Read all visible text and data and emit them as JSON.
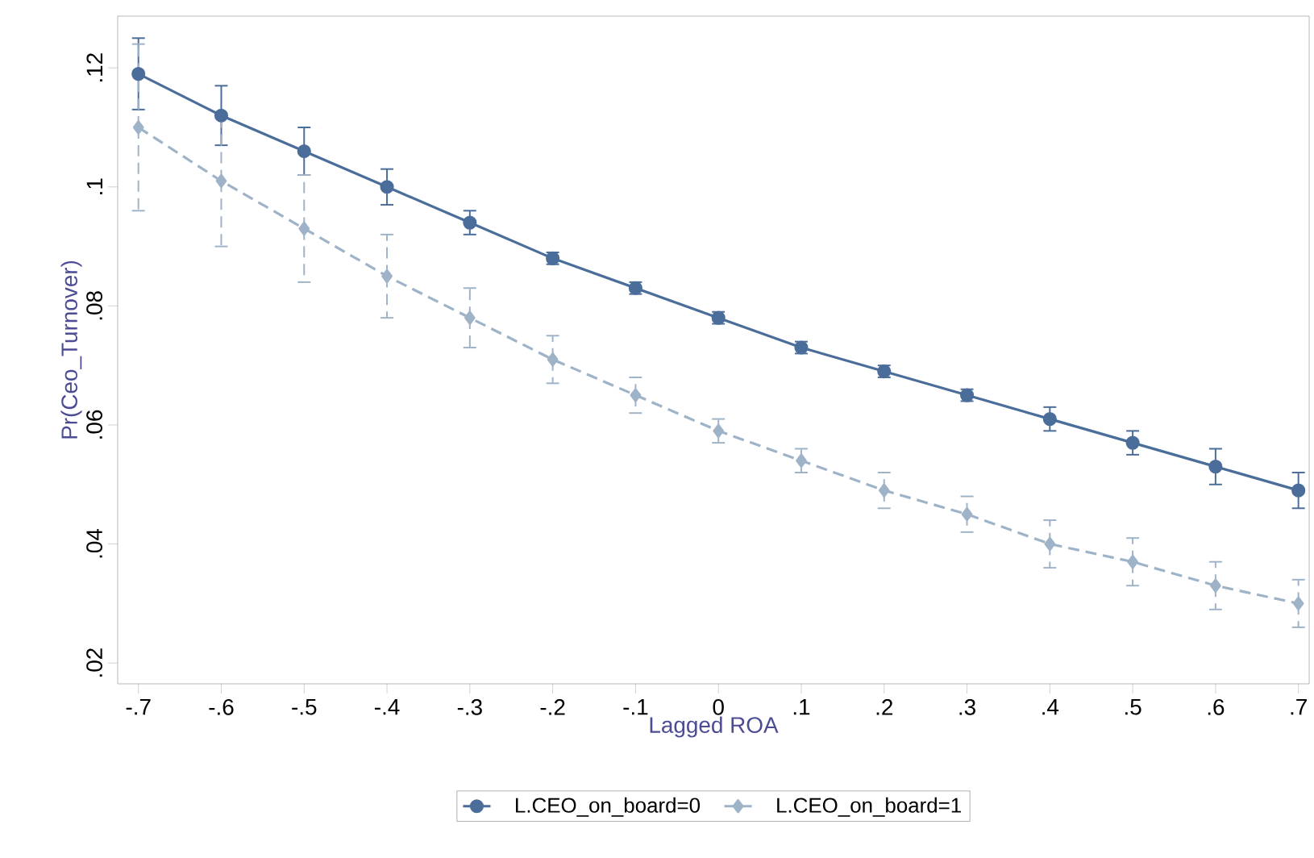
{
  "chart_data": {
    "type": "line",
    "xlabel": "Lagged ROA",
    "ylabel": "Pr(Ceo_Turnover)",
    "x": [
      -0.7,
      -0.6,
      -0.5,
      -0.4,
      -0.3,
      -0.2,
      -0.1,
      0,
      0.1,
      0.2,
      0.3,
      0.4,
      0.5,
      0.6,
      0.7
    ],
    "series": [
      {
        "name": "L.CEO_on_board=0",
        "color": "#4a6d9a",
        "marker": "circle",
        "line_style": "solid",
        "values": [
          0.119,
          0.112,
          0.106,
          0.1,
          0.094,
          0.088,
          0.083,
          0.078,
          0.073,
          0.069,
          0.065,
          0.061,
          0.057,
          0.053,
          0.049
        ],
        "errors": [
          0.006,
          0.005,
          0.004,
          0.003,
          0.002,
          0.001,
          0.001,
          0.001,
          0.001,
          0.001,
          0.001,
          0.002,
          0.002,
          0.003,
          0.003
        ]
      },
      {
        "name": "L.CEO_on_board=1",
        "color": "#9fb3c8",
        "marker": "diamond",
        "line_style": "dashed",
        "values": [
          0.11,
          0.101,
          0.093,
          0.085,
          0.078,
          0.071,
          0.065,
          0.059,
          0.054,
          0.049,
          0.045,
          0.04,
          0.037,
          0.033,
          0.03
        ],
        "errors": [
          0.014,
          0.011,
          0.009,
          0.007,
          0.005,
          0.004,
          0.003,
          0.002,
          0.002,
          0.003,
          0.003,
          0.004,
          0.004,
          0.004,
          0.004
        ]
      }
    ],
    "xlim": [
      -0.725,
      0.713
    ],
    "ylim": [
      0.0165,
      0.1287
    ],
    "xticks": [
      {
        "value": -0.7,
        "label": "-.7"
      },
      {
        "value": -0.6,
        "label": "-.6"
      },
      {
        "value": -0.5,
        "label": "-.5"
      },
      {
        "value": -0.4,
        "label": "-.4"
      },
      {
        "value": -0.3,
        "label": "-.3"
      },
      {
        "value": -0.2,
        "label": "-.2"
      },
      {
        "value": -0.1,
        "label": "-.1"
      },
      0,
      {
        "value": 0.1,
        "label": ".1"
      },
      {
        "value": 0.2,
        "label": ".2"
      },
      {
        "value": 0.3,
        "label": ".3"
      },
      {
        "value": 0.4,
        "label": ".4"
      },
      {
        "value": 0.5,
        "label": ".5"
      },
      {
        "value": 0.6,
        "label": ".6"
      },
      {
        "value": 0.7,
        "label": ".7"
      }
    ],
    "yticks": [
      {
        "value": 0.02,
        "label": ".02"
      },
      {
        "value": 0.04,
        "label": ".04"
      },
      {
        "value": 0.06,
        "label": ".06"
      },
      {
        "value": 0.08,
        "label": ".08"
      },
      {
        "value": 0.1,
        "label": ".1"
      },
      {
        "value": 0.12,
        "label": ".12"
      }
    ],
    "grid": false,
    "legend": "bottom"
  }
}
